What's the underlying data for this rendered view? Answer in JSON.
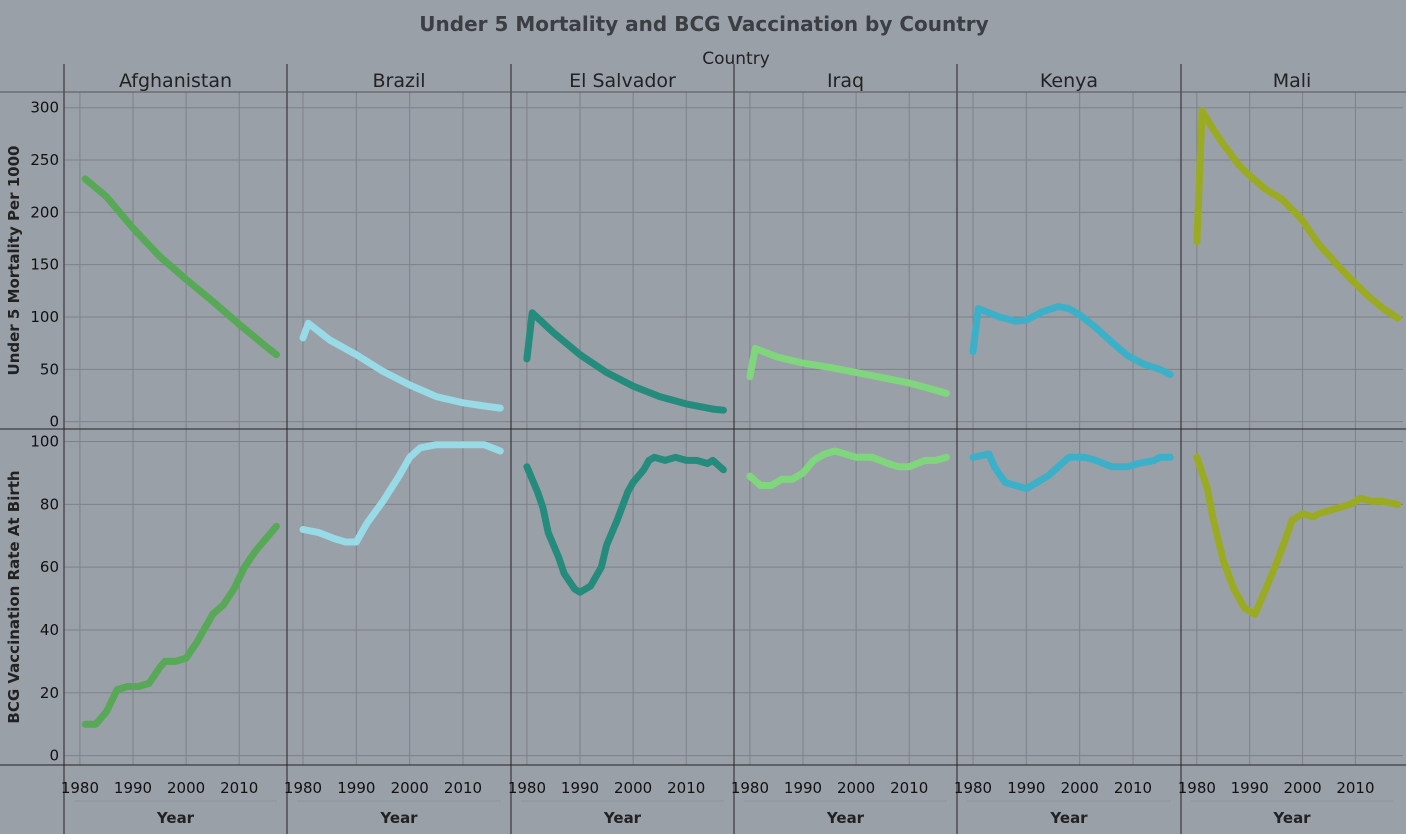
{
  "chart_data": {
    "type": "line",
    "title": "Under 5 Mortality and BCG Vaccination by Country",
    "column_header": "Country",
    "xlabel": "Year",
    "x_ticks": [
      1980,
      1990,
      2000,
      2010
    ],
    "xlim": [
      1977,
      2019
    ],
    "rows": [
      {
        "key": "mortality",
        "ylabel": "Under 5 Mortality Per 1000",
        "y_ticks": [
          0,
          50,
          100,
          150,
          200,
          250,
          300
        ],
        "ylim": [
          -7,
          315
        ]
      },
      {
        "key": "bcg",
        "ylabel": "BCG Vaccination Rate At Birth",
        "y_ticks": [
          0,
          20,
          40,
          60,
          80,
          100
        ],
        "ylim": [
          -3,
          104
        ]
      }
    ],
    "grid": true,
    "countries": [
      {
        "name": "Afghanistan",
        "color": "#57a857",
        "mortality": [
          [
            1981,
            232
          ],
          [
            1985,
            215
          ],
          [
            1990,
            185
          ],
          [
            1995,
            158
          ],
          [
            2000,
            136
          ],
          [
            2005,
            115
          ],
          [
            2010,
            93
          ],
          [
            2015,
            72
          ],
          [
            2017,
            64
          ]
        ],
        "bcg": [
          [
            1981,
            10
          ],
          [
            1983,
            10
          ],
          [
            1985,
            14
          ],
          [
            1987,
            21
          ],
          [
            1989,
            22
          ],
          [
            1991,
            22
          ],
          [
            1993,
            23
          ],
          [
            1995,
            28
          ],
          [
            1996,
            30
          ],
          [
            1998,
            30
          ],
          [
            2000,
            31
          ],
          [
            2002,
            36
          ],
          [
            2003,
            39
          ],
          [
            2005,
            45
          ],
          [
            2007,
            48
          ],
          [
            2009,
            53
          ],
          [
            2011,
            60
          ],
          [
            2013,
            65
          ],
          [
            2015,
            69
          ],
          [
            2017,
            73
          ]
        ]
      },
      {
        "name": "Brazil",
        "color": "#98dae6",
        "mortality": [
          [
            1980,
            80
          ],
          [
            1981,
            94
          ],
          [
            1985,
            78
          ],
          [
            1990,
            64
          ],
          [
            1995,
            48
          ],
          [
            2000,
            35
          ],
          [
            2005,
            24
          ],
          [
            2010,
            18
          ],
          [
            2014,
            15
          ],
          [
            2017,
            13
          ]
        ],
        "bcg": [
          [
            1980,
            72
          ],
          [
            1983,
            71
          ],
          [
            1986,
            69
          ],
          [
            1988,
            68
          ],
          [
            1990,
            68
          ],
          [
            1992,
            74
          ],
          [
            1995,
            81
          ],
          [
            1998,
            89
          ],
          [
            2000,
            95
          ],
          [
            2002,
            98
          ],
          [
            2005,
            99
          ],
          [
            2010,
            99
          ],
          [
            2014,
            99
          ],
          [
            2017,
            97
          ]
        ]
      },
      {
        "name": "El Salvador",
        "color": "#258b7c",
        "mortality": [
          [
            1980,
            60
          ],
          [
            1981,
            104
          ],
          [
            1985,
            85
          ],
          [
            1990,
            64
          ],
          [
            1995,
            47
          ],
          [
            2000,
            34
          ],
          [
            2005,
            24
          ],
          [
            2010,
            17
          ],
          [
            2015,
            12
          ],
          [
            2017,
            11
          ]
        ],
        "bcg": [
          [
            1980,
            92
          ],
          [
            1982,
            84
          ],
          [
            1983,
            79
          ],
          [
            1984,
            71
          ],
          [
            1986,
            63
          ],
          [
            1987,
            58
          ],
          [
            1989,
            53
          ],
          [
            1990,
            52
          ],
          [
            1992,
            54
          ],
          [
            1994,
            60
          ],
          [
            1995,
            67
          ],
          [
            1997,
            75
          ],
          [
            1999,
            84
          ],
          [
            2000,
            87
          ],
          [
            2002,
            91
          ],
          [
            2003,
            94
          ],
          [
            2004,
            95
          ],
          [
            2006,
            94
          ],
          [
            2008,
            95
          ],
          [
            2010,
            94
          ],
          [
            2012,
            94
          ],
          [
            2014,
            93
          ],
          [
            2015,
            94
          ],
          [
            2017,
            91
          ]
        ]
      },
      {
        "name": "Iraq",
        "color": "#80d67d",
        "mortality": [
          [
            1980,
            43
          ],
          [
            1981,
            70
          ],
          [
            1985,
            62
          ],
          [
            1990,
            56
          ],
          [
            1995,
            52
          ],
          [
            2000,
            47
          ],
          [
            2005,
            42
          ],
          [
            2010,
            37
          ],
          [
            2015,
            30
          ],
          [
            2017,
            27
          ]
        ],
        "bcg": [
          [
            1980,
            89
          ],
          [
            1982,
            86
          ],
          [
            1984,
            86
          ],
          [
            1986,
            88
          ],
          [
            1988,
            88
          ],
          [
            1990,
            90
          ],
          [
            1992,
            94
          ],
          [
            1994,
            96
          ],
          [
            1996,
            97
          ],
          [
            1998,
            96
          ],
          [
            2000,
            95
          ],
          [
            2003,
            95
          ],
          [
            2006,
            93
          ],
          [
            2008,
            92
          ],
          [
            2010,
            92
          ],
          [
            2013,
            94
          ],
          [
            2015,
            94
          ],
          [
            2017,
            95
          ]
        ]
      },
      {
        "name": "Kenya",
        "color": "#3cb0c8",
        "mortality": [
          [
            1980,
            67
          ],
          [
            1981,
            108
          ],
          [
            1985,
            100
          ],
          [
            1988,
            96
          ],
          [
            1990,
            97
          ],
          [
            1993,
            105
          ],
          [
            1996,
            110
          ],
          [
            1998,
            108
          ],
          [
            2000,
            102
          ],
          [
            2003,
            90
          ],
          [
            2006,
            76
          ],
          [
            2009,
            63
          ],
          [
            2012,
            55
          ],
          [
            2015,
            50
          ],
          [
            2017,
            45
          ]
        ],
        "bcg": [
          [
            1980,
            95
          ],
          [
            1983,
            96
          ],
          [
            1984,
            92
          ],
          [
            1986,
            87
          ],
          [
            1988,
            86
          ],
          [
            1990,
            85
          ],
          [
            1992,
            87
          ],
          [
            1994,
            89
          ],
          [
            1996,
            92
          ],
          [
            1998,
            95
          ],
          [
            2001,
            95
          ],
          [
            2003,
            94
          ],
          [
            2006,
            92
          ],
          [
            2009,
            92
          ],
          [
            2011,
            93
          ],
          [
            2014,
            94
          ],
          [
            2015,
            95
          ],
          [
            2017,
            95
          ]
        ]
      },
      {
        "name": "Mali",
        "color": "#9aab23",
        "mortality": [
          [
            1980,
            172
          ],
          [
            1981,
            297
          ],
          [
            1983,
            280
          ],
          [
            1985,
            265
          ],
          [
            1988,
            245
          ],
          [
            1990,
            235
          ],
          [
            1993,
            222
          ],
          [
            1996,
            213
          ],
          [
            1999,
            198
          ],
          [
            2000,
            192
          ],
          [
            2003,
            170
          ],
          [
            2006,
            153
          ],
          [
            2009,
            137
          ],
          [
            2012,
            122
          ],
          [
            2015,
            109
          ],
          [
            2018,
            99
          ]
        ],
        "bcg": [
          [
            1980,
            95
          ],
          [
            1982,
            85
          ],
          [
            1983,
            76
          ],
          [
            1984,
            69
          ],
          [
            1985,
            62
          ],
          [
            1987,
            53
          ],
          [
            1989,
            47
          ],
          [
            1991,
            45
          ],
          [
            1993,
            53
          ],
          [
            1995,
            61
          ],
          [
            1997,
            70
          ],
          [
            1998,
            75
          ],
          [
            2000,
            77
          ],
          [
            2002,
            76
          ],
          [
            2003,
            77
          ],
          [
            2005,
            78
          ],
          [
            2007,
            79
          ],
          [
            2009,
            80
          ],
          [
            2011,
            82
          ],
          [
            2013,
            81
          ],
          [
            2015,
            81
          ],
          [
            2018,
            80
          ]
        ]
      }
    ]
  }
}
